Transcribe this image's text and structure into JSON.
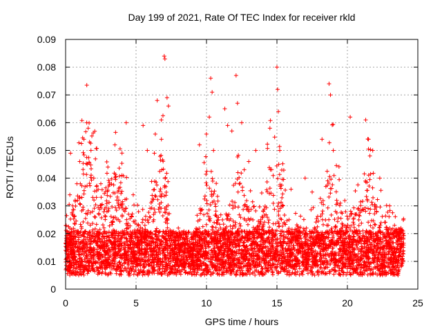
{
  "chart_data": {
    "type": "scatter",
    "title": "Day 199 of 2021, Rate Of TEC Index for receiver rkld",
    "xlabel": "GPS time / hours",
    "ylabel": "ROTI / TECUs",
    "xlim": [
      0,
      25
    ],
    "ylim": [
      0,
      0.09
    ],
    "xticks": [
      0,
      5,
      10,
      15,
      20,
      25
    ],
    "yticks": [
      0,
      0.01,
      0.02,
      0.03,
      0.04,
      0.05,
      0.06,
      0.07,
      0.08,
      0.09
    ],
    "xtick_labels": [
      "0",
      "5",
      "10",
      "15",
      "20",
      "25"
    ],
    "ytick_labels": [
      "0",
      "0.01",
      "0.02",
      "0.03",
      "0.04",
      "0.05",
      "0.06",
      "0.07",
      "0.08",
      "0.09"
    ],
    "grid": true,
    "marker": "+",
    "color": "#ff0000",
    "series": [
      {
        "name": "ROTI",
        "points": [
          [
            0.0,
            0.014
          ],
          [
            0.2,
            0.012
          ],
          [
            0.3,
            0.034
          ],
          [
            0.35,
            0.049
          ],
          [
            0.5,
            0.03
          ],
          [
            0.8,
            0.038
          ],
          [
            1.0,
            0.046
          ],
          [
            1.3,
            0.054
          ],
          [
            1.5,
            0.06
          ],
          [
            1.6,
            0.058
          ],
          [
            1.7,
            0.053
          ],
          [
            1.8,
            0.05
          ],
          [
            2.0,
            0.04
          ],
          [
            2.5,
            0.038
          ],
          [
            3.0,
            0.044
          ],
          [
            3.5,
            0.052
          ],
          [
            4.0,
            0.041
          ],
          [
            4.3,
            0.06
          ],
          [
            4.8,
            0.034
          ],
          [
            5.5,
            0.059
          ],
          [
            5.8,
            0.05
          ],
          [
            6.3,
            0.049
          ],
          [
            6.5,
            0.068
          ],
          [
            6.8,
            0.054
          ],
          [
            7.0,
            0.084
          ],
          [
            7.05,
            0.083
          ],
          [
            7.2,
            0.069
          ],
          [
            7.3,
            0.066
          ],
          [
            8.0,
            0.022
          ],
          [
            8.5,
            0.02
          ],
          [
            9.5,
            0.052
          ],
          [
            10.2,
            0.062
          ],
          [
            10.3,
            0.076
          ],
          [
            10.4,
            0.071
          ],
          [
            10.5,
            0.05
          ],
          [
            11.3,
            0.065
          ],
          [
            11.5,
            0.059
          ],
          [
            11.8,
            0.057
          ],
          [
            12.1,
            0.077
          ],
          [
            12.2,
            0.067
          ],
          [
            12.5,
            0.06
          ],
          [
            13.0,
            0.046
          ],
          [
            13.5,
            0.05
          ],
          [
            14.5,
            0.058
          ],
          [
            15.0,
            0.08
          ],
          [
            15.05,
            0.072
          ],
          [
            15.1,
            0.064
          ],
          [
            15.2,
            0.05
          ],
          [
            16.0,
            0.036
          ],
          [
            16.5,
            0.022
          ],
          [
            17.0,
            0.04
          ],
          [
            17.5,
            0.035
          ],
          [
            18.2,
            0.054
          ],
          [
            18.7,
            0.074
          ],
          [
            18.8,
            0.07
          ],
          [
            19.0,
            0.05
          ],
          [
            19.5,
            0.031
          ],
          [
            20.2,
            0.062
          ],
          [
            21.3,
            0.061
          ],
          [
            21.5,
            0.054
          ],
          [
            21.8,
            0.05
          ],
          [
            22.3,
            0.04
          ],
          [
            23.0,
            0.03
          ],
          [
            23.8,
            0.022
          ]
        ]
      }
    ]
  }
}
